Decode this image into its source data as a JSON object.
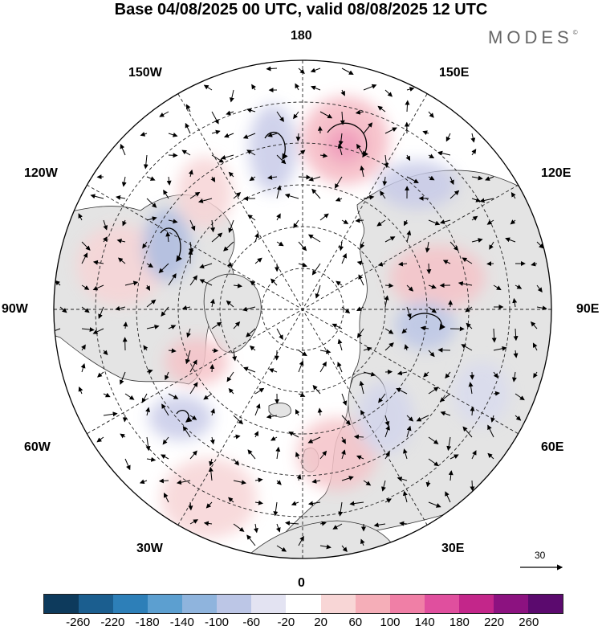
{
  "title": "Base 04/08/2025 00 UTC, valid 08/08/2025 12 UTC",
  "logo": {
    "text": "MODES",
    "mark": "©"
  },
  "map": {
    "projection": "north-polar-stereographic",
    "longitude_labels": {
      "top": "180",
      "upper_left": "150W",
      "upper_right": "150E",
      "mid_upper_left": "120W",
      "mid_upper_right": "120E",
      "left": "90W",
      "right": "90E",
      "mid_lower_left": "60W",
      "mid_lower_right": "60E",
      "lower_left": "30W",
      "lower_right": "30E",
      "bottom": "0"
    },
    "wind_reference": {
      "value": "30",
      "icon": "arrow-right-icon"
    }
  },
  "colorbar": {
    "tick_labels": [
      "-260",
      "-220",
      "-180",
      "-140",
      "-100",
      "-60",
      "-20",
      "20",
      "60",
      "100",
      "140",
      "180",
      "220",
      "260"
    ],
    "colors": [
      "#0d3a5c",
      "#1b5e8f",
      "#2d7fb8",
      "#5c9fd0",
      "#8fb4dd",
      "#bcc6e6",
      "#e3e3f2",
      "#ffffff",
      "#f8d6d6",
      "#f5aeb8",
      "#f07fa6",
      "#e04f9e",
      "#c3268a",
      "#8c1280",
      "#5b0a6e"
    ]
  }
}
